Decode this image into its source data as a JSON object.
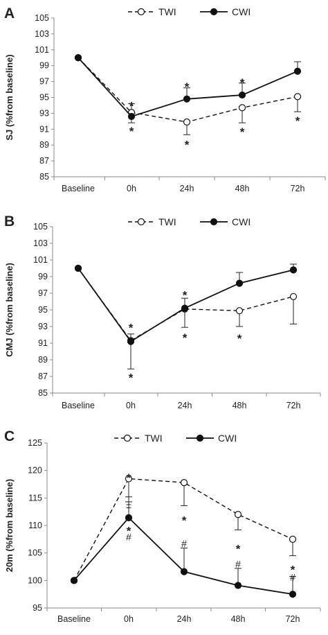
{
  "figure_bg": "#ffffff",
  "chart_data": [
    {
      "panel": "A",
      "type": "line",
      "ylabel": "SJ (%from baseline)",
      "ylim": [
        85,
        105
      ],
      "yticks": [
        "85",
        "87",
        "89",
        "91",
        "93",
        "95",
        "97",
        "99",
        "101",
        "103",
        "105"
      ],
      "categories": [
        "Baseline",
        "0h",
        "24h",
        "48h",
        "72h"
      ],
      "legend": "top",
      "series": [
        {
          "name": "TWI",
          "style": "dashed",
          "marker": "open-circle",
          "values": [
            100,
            93.1,
            91.9,
            93.7,
            95.1
          ],
          "error_low": [
            null,
            null,
            1.6,
            1.9,
            1.9
          ],
          "error_high": [
            null,
            null,
            null,
            null,
            null
          ]
        },
        {
          "name": "CWI",
          "style": "solid",
          "marker": "filled-circle",
          "values": [
            100,
            92.6,
            94.8,
            95.3,
            98.3
          ],
          "error_low": [
            null,
            0.8,
            null,
            null,
            null
          ],
          "error_high": [
            null,
            1.6,
            1.4,
            1.5,
            1.2
          ]
        }
      ],
      "annotations": [
        {
          "text": "*",
          "x": "0h",
          "y": 94.4
        },
        {
          "text": "*",
          "x": "0h",
          "y": 91.2
        },
        {
          "text": "*",
          "x": "24h",
          "y": 96.8
        },
        {
          "text": "*",
          "x": "24h",
          "y": 89.5
        },
        {
          "text": "*",
          "x": "48h",
          "y": 97.3
        },
        {
          "text": "*",
          "x": "48h",
          "y": 91.1
        },
        {
          "text": "*",
          "x": "72h",
          "y": 92.5
        }
      ]
    },
    {
      "panel": "B",
      "type": "line",
      "ylabel": "CMJ (%from baseline)",
      "ylim": [
        85,
        105
      ],
      "yticks": [
        "85",
        "87",
        "89",
        "91",
        "93",
        "95",
        "97",
        "99",
        "101",
        "103",
        "105"
      ],
      "categories": [
        "Baseline",
        "0h",
        "24h",
        "48h",
        "72h"
      ],
      "legend": "top",
      "series": [
        {
          "name": "TWI",
          "style": "dashed",
          "marker": "open-circle",
          "values": [
            100,
            91.3,
            95.1,
            94.9,
            96.6
          ],
          "error_low": [
            null,
            null,
            2.2,
            1.9,
            3.3
          ],
          "error_high": [
            null,
            null,
            null,
            null,
            null
          ]
        },
        {
          "name": "CWI",
          "style": "solid",
          "marker": "filled-circle",
          "values": [
            100,
            91.2,
            95.2,
            98.2,
            99.8
          ],
          "error_low": [
            null,
            3.3,
            null,
            null,
            null
          ],
          "error_high": [
            null,
            0.9,
            1.2,
            1.3,
            0.7
          ]
        }
      ],
      "annotations": [
        {
          "text": "*",
          "x": "0h",
          "y": 93.3
        },
        {
          "text": "*",
          "x": "0h",
          "y": 87.3
        },
        {
          "text": "*",
          "x": "24h",
          "y": 97.2
        },
        {
          "text": "*",
          "x": "24h",
          "y": 92.1
        },
        {
          "text": "*",
          "x": "48h",
          "y": 92.0
        }
      ]
    },
    {
      "panel": "C",
      "type": "line",
      "ylabel": "20m (%from baseline)",
      "ylim": [
        95,
        125
      ],
      "yticks": [
        "95",
        "100",
        "105",
        "110",
        "115",
        "120",
        "125"
      ],
      "categories": [
        "Baseline",
        "0h",
        "24h",
        "48h",
        "72h"
      ],
      "legend": "top",
      "series": [
        {
          "name": "TWI",
          "style": "dashed",
          "marker": "open-circle",
          "values": [
            100,
            118.5,
            117.8,
            112.0,
            107.5
          ],
          "error_low": [
            null,
            4.2,
            4.2,
            2.8,
            3.0
          ],
          "error_high": [
            null,
            null,
            null,
            null,
            null
          ]
        },
        {
          "name": "CWI",
          "style": "solid",
          "marker": "filled-circle",
          "values": [
            100,
            111.4,
            101.6,
            99.1,
            97.5
          ],
          "error_low": [
            null,
            null,
            null,
            null,
            null
          ],
          "error_high": [
            null,
            3.8,
            4.3,
            3.1,
            3.2
          ]
        }
      ],
      "annotations": [
        {
          "text": "*",
          "x": "0h",
          "y": 119.3
        },
        {
          "text": "±",
          "x": "0h",
          "y": 113.8
        },
        {
          "text": "*",
          "x": "0h",
          "y": 109.7
        },
        {
          "text": "#",
          "x": "0h",
          "y": 107.9
        },
        {
          "text": "*",
          "x": "24h",
          "y": 111.6
        },
        {
          "text": "#",
          "x": "24h",
          "y": 106.7
        },
        {
          "text": "*",
          "x": "48h",
          "y": 106.4
        },
        {
          "text": "#",
          "x": "48h",
          "y": 103.0
        },
        {
          "text": "*",
          "x": "72h",
          "y": 102.6
        },
        {
          "text": "#",
          "x": "72h",
          "y": 100.6
        }
      ]
    }
  ]
}
